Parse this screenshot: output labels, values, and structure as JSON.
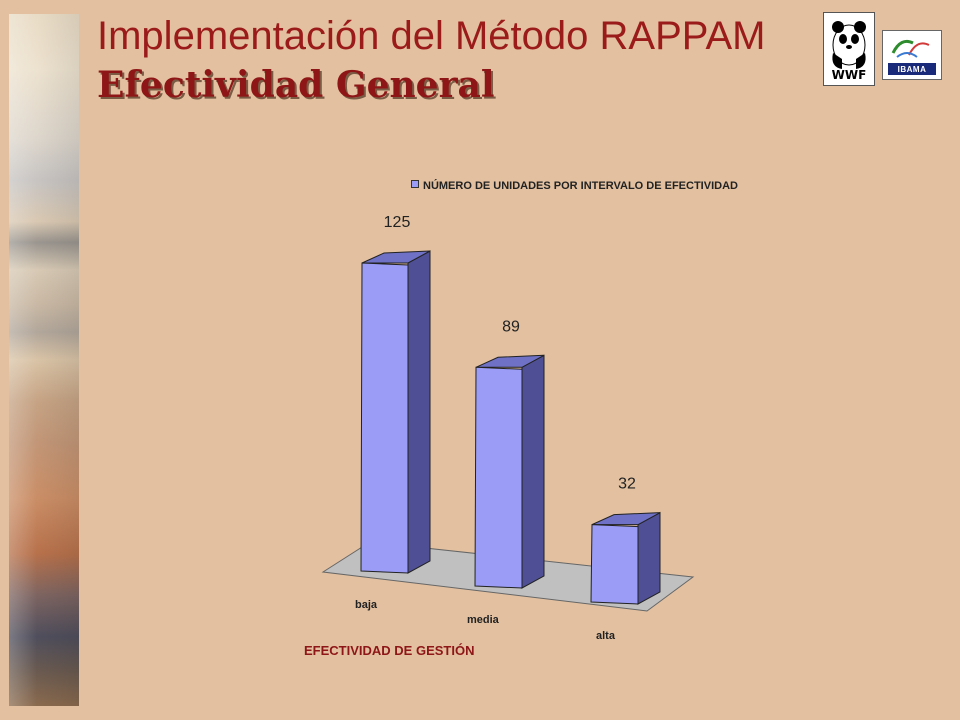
{
  "header": {
    "title_line1": "Implementación del Método RAPPAM",
    "title_line2": "Efectividad General"
  },
  "logos": {
    "wwf": {
      "text": "WWF",
      "icon": "panda-logo"
    },
    "ibama": {
      "text": "IBAMA",
      "icon": "ibama-logo"
    }
  },
  "colors": {
    "background": "#e2c0a0",
    "title": "#9b1b1b",
    "bar_front": "#9a9cf6",
    "bar_side": "#4f4f95",
    "bar_top": "#6f71c6",
    "floor": "#c0c0c0"
  },
  "chart_data": {
    "type": "bar",
    "title": "",
    "categories": [
      "baja",
      "media",
      "alta"
    ],
    "series": [
      {
        "name": "NÚMERO DE UNIDADES POR INTERVALO DE EFECTIVIDAD",
        "values": [
          125,
          89,
          32
        ]
      }
    ],
    "xlabel": "EFECTIVIDAD DE GESTIÓN",
    "ylabel": "",
    "data_labels": [
      "125",
      "89",
      "32"
    ],
    "legend_position": "top",
    "grid": false,
    "style": "3d-column"
  }
}
